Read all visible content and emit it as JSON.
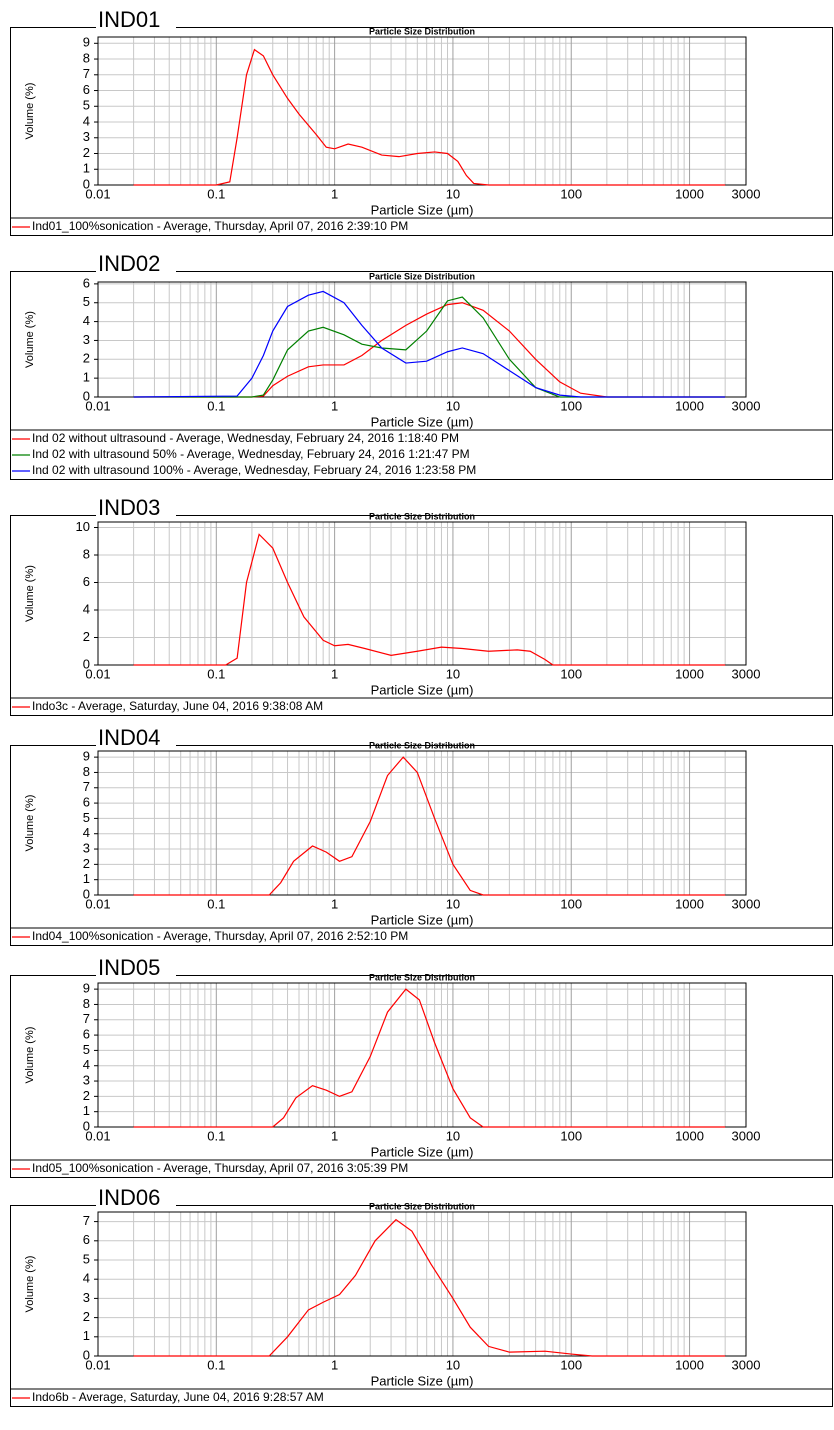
{
  "chart_data": [
    {
      "type": "line",
      "heading": "IND01",
      "title": "Particle Size Distribution",
      "x_label": "Particle Size (µm)",
      "y_label": "Volume (%)",
      "log_x": true,
      "grid": true,
      "xlim": [
        0.01,
        3000
      ],
      "xticks": [
        0.01,
        0.1,
        1,
        10,
        100,
        1000,
        3000
      ],
      "ylim": [
        0,
        9.4
      ],
      "yticks": [
        0,
        1,
        2,
        3,
        4,
        5,
        6,
        7,
        8,
        9
      ],
      "x": [
        0.02,
        0.1,
        0.13,
        0.15,
        0.18,
        0.21,
        0.25,
        0.3,
        0.4,
        0.5,
        0.7,
        0.85,
        1,
        1.3,
        1.7,
        2.5,
        3.5,
        5,
        7,
        9,
        11,
        13,
        15,
        20,
        100,
        1000,
        2000
      ],
      "series": [
        {
          "name": "Ind01_100%sonication - Average, Thursday, April 07, 2016 2:39:10 PM",
          "color": "#ff0000",
          "values": [
            0,
            0,
            0.2,
            3,
            7,
            8.6,
            8.2,
            7,
            5.5,
            4.5,
            3.2,
            2.4,
            2.3,
            2.6,
            2.4,
            1.9,
            1.8,
            2.0,
            2.1,
            2.0,
            1.5,
            0.6,
            0.1,
            0,
            0,
            0,
            0
          ]
        }
      ]
    },
    {
      "type": "line",
      "heading": "IND02",
      "title": "Particle Size Distribution",
      "x_label": "Particle Size (µm)",
      "y_label": "Volume (%)",
      "log_x": true,
      "grid": true,
      "xlim": [
        0.01,
        3000
      ],
      "xticks": [
        0.01,
        0.1,
        1,
        10,
        100,
        1000,
        3000
      ],
      "ylim": [
        0,
        6.1
      ],
      "yticks": [
        0,
        1,
        2,
        3,
        4,
        5,
        6
      ],
      "x": [
        0.02,
        0.15,
        0.2,
        0.25,
        0.3,
        0.4,
        0.6,
        0.8,
        1.2,
        1.7,
        2.5,
        4,
        6,
        9,
        12,
        18,
        30,
        50,
        80,
        120,
        200,
        1000,
        2000
      ],
      "series": [
        {
          "name": "Ind 02 without ultrasound - Average, Wednesday, February 24, 2016 1:18:40 PM",
          "color": "#ff0000",
          "values": [
            0,
            0,
            0,
            0.05,
            0.6,
            1.1,
            1.6,
            1.7,
            1.7,
            2.2,
            3.0,
            3.8,
            4.4,
            4.9,
            5.0,
            4.6,
            3.5,
            2.0,
            0.8,
            0.2,
            0,
            0,
            0
          ]
        },
        {
          "name": "Ind 02 with ultrasound 50% - Average, Wednesday, February 24, 2016 1:21:47 PM",
          "color": "#008000",
          "values": [
            0,
            0,
            0,
            0.1,
            0.9,
            2.5,
            3.5,
            3.7,
            3.3,
            2.8,
            2.6,
            2.5,
            3.5,
            5.1,
            5.3,
            4.2,
            2.0,
            0.5,
            0,
            0,
            0,
            0,
            0
          ]
        },
        {
          "name": "Ind 02 with ultrasound 100% - Average, Wednesday, February 24, 2016 1:23:58 PM",
          "color": "#0000ff",
          "values": [
            0,
            0.05,
            1.0,
            2.2,
            3.5,
            4.8,
            5.4,
            5.6,
            5.0,
            3.8,
            2.6,
            1.8,
            1.9,
            2.4,
            2.6,
            2.3,
            1.4,
            0.5,
            0.1,
            0,
            0,
            0,
            0
          ]
        }
      ]
    },
    {
      "type": "line",
      "heading": "IND03",
      "title": "Particle Size Distribution",
      "x_label": "Particle Size (µm)",
      "y_label": "Volume (%)",
      "log_x": true,
      "grid": true,
      "xlim": [
        0.01,
        3000
      ],
      "xticks": [
        0.01,
        0.1,
        1,
        10,
        100,
        1000,
        3000
      ],
      "ylim": [
        0,
        10.4
      ],
      "yticks": [
        0,
        2,
        4,
        6,
        8,
        10
      ],
      "x": [
        0.02,
        0.12,
        0.15,
        0.18,
        0.23,
        0.3,
        0.4,
        0.55,
        0.8,
        1,
        1.3,
        1.8,
        3,
        5,
        8,
        12,
        20,
        35,
        45,
        60,
        70,
        100,
        1000,
        2000
      ],
      "series": [
        {
          "name": "Indo3c - Average, Saturday, June 04, 2016 9:38:08 AM",
          "color": "#ff0000",
          "values": [
            0,
            0,
            0.5,
            6,
            9.5,
            8.5,
            6,
            3.5,
            1.8,
            1.4,
            1.5,
            1.2,
            0.7,
            1.0,
            1.3,
            1.2,
            1.0,
            1.1,
            1.0,
            0.4,
            0,
            0,
            0,
            0
          ]
        }
      ]
    },
    {
      "type": "line",
      "heading": "IND04",
      "title": "Particle Size Distribution",
      "x_label": "Particle Size (µm)",
      "y_label": "Volume (%)",
      "log_x": true,
      "grid": true,
      "xlim": [
        0.01,
        3000
      ],
      "xticks": [
        0.01,
        0.1,
        1,
        10,
        100,
        1000,
        3000
      ],
      "ylim": [
        0,
        9.4
      ],
      "yticks": [
        0,
        1,
        2,
        3,
        4,
        5,
        6,
        7,
        8,
        9
      ],
      "x": [
        0.02,
        0.28,
        0.35,
        0.45,
        0.65,
        0.85,
        1.1,
        1.4,
        2,
        2.8,
        3.8,
        5,
        7,
        10,
        14,
        18,
        100,
        1000,
        2000
      ],
      "series": [
        {
          "name": "Ind04_100%sonication - Average, Thursday, April 07, 2016 2:52:10 PM",
          "color": "#ff0000",
          "values": [
            0,
            0,
            0.8,
            2.2,
            3.2,
            2.8,
            2.2,
            2.5,
            4.8,
            7.8,
            9,
            8,
            5,
            2,
            0.3,
            0,
            0,
            0,
            0
          ]
        }
      ]
    },
    {
      "type": "line",
      "heading": "IND05",
      "title": "Particle Size Distribution",
      "x_label": "Particle Size (µm)",
      "y_label": "Volume (%)",
      "log_x": true,
      "grid": true,
      "xlim": [
        0.01,
        3000
      ],
      "xticks": [
        0.01,
        0.1,
        1,
        10,
        100,
        1000,
        3000
      ],
      "ylim": [
        0,
        9.4
      ],
      "yticks": [
        0,
        1,
        2,
        3,
        4,
        5,
        6,
        7,
        8,
        9
      ],
      "x": [
        0.02,
        0.3,
        0.37,
        0.47,
        0.65,
        0.85,
        1.1,
        1.4,
        2,
        2.8,
        4,
        5.2,
        7,
        10,
        14,
        18,
        100,
        1000,
        2000
      ],
      "series": [
        {
          "name": "Ind05_100%sonication - Average, Thursday, April 07, 2016 3:05:39 PM",
          "color": "#ff0000",
          "values": [
            0,
            0,
            0.6,
            1.9,
            2.7,
            2.4,
            2.0,
            2.3,
            4.6,
            7.5,
            9,
            8.3,
            5.5,
            2.5,
            0.6,
            0,
            0,
            0,
            0
          ]
        }
      ]
    },
    {
      "type": "line",
      "heading": "IND06",
      "title": "Particle Size Distribution",
      "x_label": "Particle Size (µm)",
      "y_label": "Volume (%)",
      "log_x": true,
      "grid": true,
      "xlim": [
        0.01,
        3000
      ],
      "xticks": [
        0.01,
        0.1,
        1,
        10,
        100,
        1000,
        3000
      ],
      "ylim": [
        0,
        7.5
      ],
      "yticks": [
        0,
        1,
        2,
        3,
        4,
        5,
        6,
        7
      ],
      "x": [
        0.02,
        0.28,
        0.4,
        0.6,
        0.8,
        1.1,
        1.5,
        2.2,
        3.3,
        4.5,
        6.5,
        10,
        14,
        20,
        30,
        60,
        100,
        150,
        1000,
        2000
      ],
      "series": [
        {
          "name": "Indo6b - Average, Saturday, June 04, 2016 9:28:57 AM",
          "color": "#ff0000",
          "values": [
            0,
            0,
            1,
            2.4,
            2.8,
            3.2,
            4.2,
            6,
            7.1,
            6.5,
            4.8,
            3,
            1.5,
            0.5,
            0.2,
            0.25,
            0.1,
            0,
            0,
            0
          ]
        }
      ]
    }
  ]
}
